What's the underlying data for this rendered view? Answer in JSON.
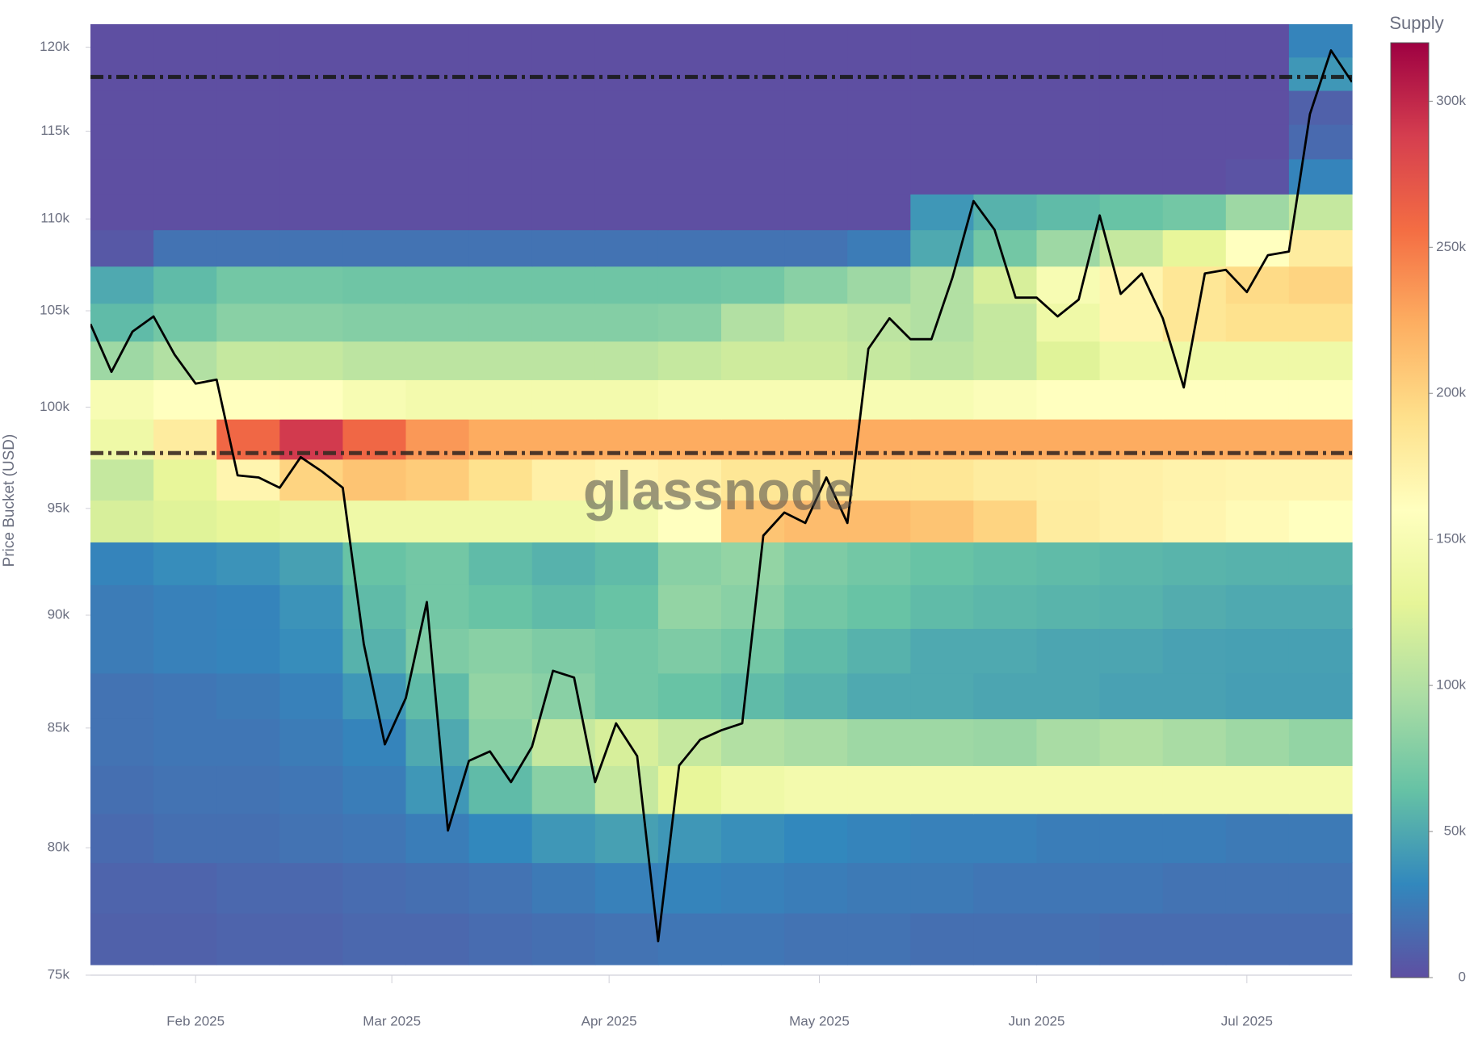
{
  "chart_data": {
    "type": "heatmap",
    "ylabel": "Price Bucket (USD)",
    "watermark": "glassnode",
    "xlim": [
      "2025-01-17",
      "2025-07-16"
    ],
    "xticks": [
      {
        "value": "2025-02-01",
        "label": "Feb 2025"
      },
      {
        "value": "2025-03-01",
        "label": "Mar 2025"
      },
      {
        "value": "2025-04-01",
        "label": "Apr 2025"
      },
      {
        "value": "2025-05-01",
        "label": "May 2025"
      },
      {
        "value": "2025-06-01",
        "label": "Jun 2025"
      },
      {
        "value": "2025-07-01",
        "label": "Jul 2025"
      }
    ],
    "ylim": [
      75000,
      121400
    ],
    "ylog": true,
    "yticks": [
      {
        "value": 75000,
        "label": "75k"
      },
      {
        "value": 80000,
        "label": "80k"
      },
      {
        "value": 85000,
        "label": "85k"
      },
      {
        "value": 90000,
        "label": "90k"
      },
      {
        "value": 95000,
        "label": "95k"
      },
      {
        "value": 100000,
        "label": "100k"
      },
      {
        "value": 105000,
        "label": "105k"
      },
      {
        "value": 110000,
        "label": "110k"
      },
      {
        "value": 115000,
        "label": "115k"
      },
      {
        "value": 120000,
        "label": "120k"
      }
    ],
    "y_edges": [
      75400,
      77400,
      79400,
      81400,
      83400,
      85400,
      87400,
      89400,
      91400,
      93400,
      95400,
      97400,
      99400,
      101400,
      103400,
      105400,
      107400,
      109400,
      111400,
      113400,
      115400,
      117400,
      119400,
      121400
    ],
    "z": [
      [
        10000,
        10000,
        12000,
        12000,
        14000,
        14000,
        16000,
        18000,
        20000,
        22000,
        22000,
        20000,
        20000,
        18000,
        18000,
        18000,
        16000,
        16000,
        16000,
        16000
      ],
      [
        12000,
        12000,
        14000,
        14000,
        16000,
        18000,
        20000,
        24000,
        28000,
        30000,
        28000,
        26000,
        24000,
        24000,
        22000,
        22000,
        22000,
        20000,
        20000,
        20000
      ],
      [
        15000,
        18000,
        18000,
        20000,
        22000,
        26000,
        32000,
        40000,
        45000,
        40000,
        36000,
        32000,
        30000,
        28000,
        28000,
        26000,
        26000,
        26000,
        24000,
        24000
      ],
      [
        18000,
        20000,
        20000,
        22000,
        26000,
        40000,
        60000,
        80000,
        110000,
        130000,
        140000,
        145000,
        145000,
        145000,
        145000,
        145000,
        145000,
        145000,
        145000,
        145000
      ],
      [
        20000,
        22000,
        22000,
        25000,
        30000,
        50000,
        80000,
        110000,
        120000,
        110000,
        100000,
        95000,
        90000,
        90000,
        88000,
        95000,
        100000,
        95000,
        90000,
        85000
      ],
      [
        20000,
        22000,
        24000,
        28000,
        40000,
        60000,
        85000,
        80000,
        70000,
        65000,
        60000,
        55000,
        50000,
        50000,
        48000,
        48000,
        46000,
        46000,
        44000,
        44000
      ],
      [
        25000,
        28000,
        30000,
        35000,
        55000,
        75000,
        80000,
        75000,
        70000,
        75000,
        70000,
        60000,
        55000,
        50000,
        50000,
        48000,
        48000,
        46000,
        45000,
        45000
      ],
      [
        25000,
        28000,
        30000,
        38000,
        60000,
        70000,
        65000,
        60000,
        65000,
        85000,
        80000,
        70000,
        65000,
        60000,
        58000,
        56000,
        55000,
        52000,
        50000,
        50000
      ],
      [
        30000,
        35000,
        38000,
        45000,
        65000,
        70000,
        60000,
        55000,
        60000,
        80000,
        85000,
        75000,
        70000,
        65000,
        62000,
        60000,
        58000,
        56000,
        55000,
        55000
      ],
      [
        120000,
        125000,
        130000,
        135000,
        140000,
        140000,
        140000,
        140000,
        145000,
        160000,
        210000,
        215000,
        215000,
        210000,
        200000,
        180000,
        175000,
        170000,
        165000,
        160000
      ],
      [
        110000,
        130000,
        170000,
        200000,
        210000,
        205000,
        190000,
        175000,
        170000,
        175000,
        185000,
        185000,
        185000,
        185000,
        180000,
        178000,
        175000,
        172000,
        170000,
        170000
      ],
      [
        140000,
        180000,
        260000,
        290000,
        260000,
        235000,
        225000,
        225000,
        225000,
        225000,
        225000,
        225000,
        225000,
        225000,
        225000,
        225000,
        225000,
        225000,
        225000,
        225000
      ],
      [
        150000,
        160000,
        160000,
        160000,
        150000,
        145000,
        145000,
        145000,
        145000,
        150000,
        150000,
        150000,
        150000,
        150000,
        155000,
        160000,
        160000,
        160000,
        160000,
        160000
      ],
      [
        90000,
        100000,
        110000,
        110000,
        105000,
        105000,
        105000,
        105000,
        105000,
        110000,
        115000,
        115000,
        110000,
        105000,
        110000,
        125000,
        140000,
        140000,
        140000,
        140000
      ],
      [
        60000,
        70000,
        80000,
        80000,
        78000,
        78000,
        78000,
        78000,
        78000,
        80000,
        100000,
        110000,
        105000,
        100000,
        110000,
        140000,
        170000,
        185000,
        190000,
        190000
      ],
      [
        50000,
        60000,
        70000,
        70000,
        68000,
        68000,
        68000,
        68000,
        68000,
        68000,
        70000,
        80000,
        90000,
        100000,
        120000,
        150000,
        170000,
        185000,
        195000,
        200000
      ],
      [
        5000,
        20000,
        20000,
        20000,
        20000,
        20000,
        20000,
        20000,
        20000,
        20000,
        20000,
        20000,
        25000,
        50000,
        70000,
        90000,
        110000,
        130000,
        160000,
        180000
      ],
      [
        0,
        0,
        0,
        0,
        0,
        0,
        0,
        0,
        0,
        0,
        0,
        0,
        0,
        40000,
        55000,
        60000,
        65000,
        70000,
        90000,
        110000
      ],
      [
        0,
        0,
        0,
        0,
        0,
        0,
        0,
        0,
        0,
        0,
        0,
        0,
        0,
        0,
        0,
        0,
        0,
        0,
        2000,
        30000
      ],
      [
        0,
        0,
        0,
        0,
        0,
        0,
        0,
        0,
        0,
        0,
        0,
        0,
        0,
        0,
        0,
        0,
        0,
        0,
        0,
        15000
      ],
      [
        0,
        0,
        0,
        0,
        0,
        0,
        0,
        0,
        0,
        0,
        0,
        0,
        0,
        0,
        0,
        0,
        0,
        0,
        0,
        10000
      ],
      [
        0,
        0,
        0,
        0,
        0,
        0,
        0,
        0,
        0,
        0,
        0,
        0,
        0,
        0,
        0,
        0,
        0,
        0,
        0,
        40000
      ],
      [
        0,
        0,
        0,
        0,
        0,
        0,
        0,
        0,
        0,
        0,
        0,
        0,
        0,
        0,
        0,
        0,
        0,
        0,
        0,
        30000
      ]
    ],
    "colorbar": {
      "title": "Supply",
      "lim": [
        0,
        320000
      ],
      "ticks": [
        0,
        {
          "value": 50000,
          "label": "50k"
        },
        {
          "value": 100000,
          "label": "100k"
        },
        {
          "value": 150000,
          "label": "150k"
        },
        {
          "value": 200000,
          "label": "200k"
        },
        {
          "value": 250000,
          "label": "250k"
        },
        {
          "value": 300000,
          "label": "300k"
        }
      ],
      "colorscale": [
        "#5e4fa2",
        "#3288bd",
        "#66c2a5",
        "#abdda4",
        "#e6f598",
        "#ffffbf",
        "#fee08b",
        "#fdae61",
        "#f46d43",
        "#d53e4f",
        "#9e0142"
      ]
    },
    "series": [
      {
        "color": "#000000",
        "values": [
          104300,
          101800,
          103900,
          104700,
          102700,
          101200,
          101400,
          96600,
          96500,
          96000,
          97500,
          96800,
          96000,
          88700,
          84300,
          86300,
          90600,
          80700,
          83600,
          84000,
          82700,
          84200,
          87500,
          87200,
          82700,
          85200,
          83800,
          76300,
          83400,
          84500,
          84900,
          85200,
          93700,
          94800,
          94300,
          96500,
          94300,
          103000,
          104600,
          103500,
          103500,
          106800,
          111000,
          109400,
          105700,
          105700,
          104700,
          105600,
          110200,
          105900,
          107000,
          104600,
          101000,
          107000,
          107200,
          106000,
          108000,
          108200,
          116000,
          119800,
          117900
        ]
      }
    ],
    "hlines": [
      {
        "value": 118200,
        "color": "#1a1a1a"
      },
      {
        "value": 97700,
        "color": "#3a2a22"
      }
    ]
  }
}
